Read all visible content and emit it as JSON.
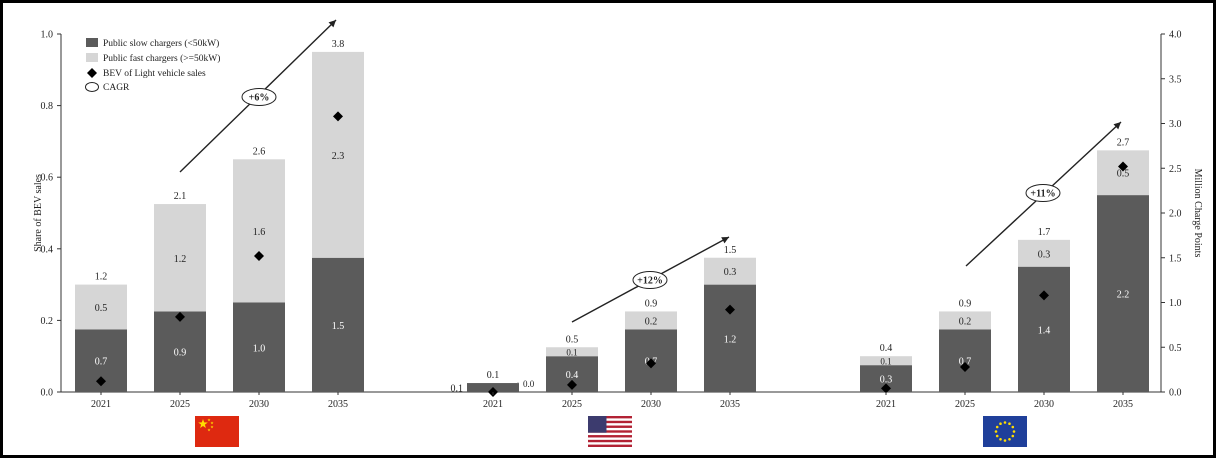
{
  "chart_data": {
    "type": "bar",
    "stacked": true,
    "groups": [
      {
        "region": "China",
        "flag": "cn-flag",
        "categories": [
          "2021",
          "2025",
          "2030",
          "2035"
        ],
        "slow": [
          0.7,
          0.9,
          1.0,
          1.5
        ],
        "fast": [
          0.5,
          1.2,
          1.6,
          2.3
        ],
        "total": [
          1.2,
          2.1,
          2.6,
          3.8
        ],
        "bev_share": [
          0.03,
          0.21,
          0.38,
          0.77
        ],
        "slow_labels": [
          "0.7",
          "0.9",
          "1.0",
          "1.5"
        ],
        "fast_labels": [
          "0.5",
          "1.2",
          "1.6",
          "2.3"
        ],
        "total_labels": [
          "1.2",
          "2.1",
          "2.6",
          "3.8"
        ],
        "cagr": "+6%"
      },
      {
        "region": "United States",
        "flag": "us-flag",
        "categories": [
          "2021",
          "2025",
          "2030",
          "2035"
        ],
        "slow": [
          0.1,
          0.4,
          0.7,
          1.2
        ],
        "fast": [
          0.0,
          0.1,
          0.2,
          0.3
        ],
        "total": [
          0.1,
          0.5,
          0.9,
          1.5
        ],
        "bev_share": [
          0.0,
          0.02,
          0.08,
          0.23
        ],
        "slow_labels": [
          "0.1",
          "0.4",
          "0.7",
          "1.2"
        ],
        "fast_labels": [
          "0.0",
          "0.1",
          "0.2",
          "0.3"
        ],
        "total_labels": [
          "0.1",
          "0.5",
          "0.9",
          "1.5"
        ],
        "cagr": "+12%"
      },
      {
        "region": "European Union",
        "flag": "eu-flag",
        "categories": [
          "2021",
          "2025",
          "2030",
          "2035"
        ],
        "slow": [
          0.3,
          0.7,
          1.4,
          2.2
        ],
        "fast": [
          0.1,
          0.2,
          0.3,
          0.5
        ],
        "total": [
          0.4,
          0.9,
          1.7,
          2.7
        ],
        "bev_share": [
          0.01,
          0.07,
          0.27,
          0.63
        ],
        "slow_labels": [
          "0.3",
          "0.7",
          "1.4",
          "2.2"
        ],
        "fast_labels": [
          "0.1",
          "0.2",
          "0.3",
          "0.5"
        ],
        "total_labels": [
          "0.4",
          "0.9",
          "1.7",
          "2.7"
        ],
        "cagr": "+11%"
      }
    ],
    "ylabel_left": "Share of BEV sales",
    "ylabel_right": "Million Charge Points",
    "ylim_left": [
      0,
      1.0
    ],
    "ylim_right": [
      0,
      4.0
    ],
    "yticks_left": [
      "0.0",
      "0.2",
      "0.4",
      "0.6",
      "0.8",
      "1.0"
    ],
    "yticks_right": [
      "0.0",
      "0.5",
      "1.0",
      "1.5",
      "2.0",
      "2.5",
      "3.0",
      "3.5",
      "4.0"
    ],
    "legend": {
      "position": "top-left",
      "slow": "Public slow chargers (<50kW)",
      "fast": "Public fast chargers (>=50kW)",
      "bev": "BEV of Light vehicle sales",
      "cagr": "CAGR"
    },
    "colors": {
      "slow": "#5b5b5b",
      "fast": "#d6d6d6",
      "marker": "#000000",
      "axis": "#333333"
    },
    "grid": false
  }
}
